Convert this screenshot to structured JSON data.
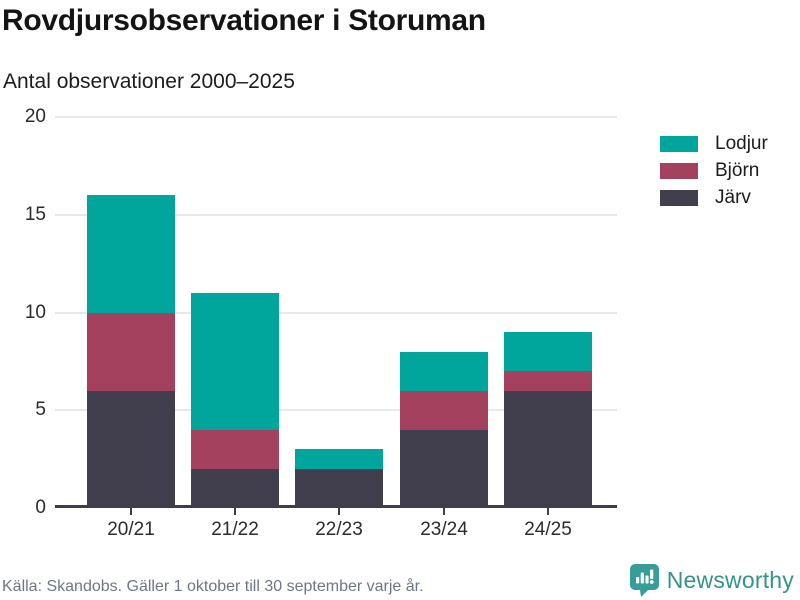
{
  "header": {
    "title": "Rovdjursobservationer i Storuman",
    "subtitle": "Antal observationer 2000–2025"
  },
  "chart_data": {
    "type": "bar",
    "stacked": true,
    "title": "Rovdjursobservationer i Storuman",
    "subtitle": "Antal observationer 2000–2025",
    "categories": [
      "20/21",
      "21/22",
      "22/23",
      "23/24",
      "24/25"
    ],
    "series": [
      {
        "name": "Lodjur",
        "color": "#00a69c",
        "values": [
          6,
          7,
          1,
          2,
          2
        ]
      },
      {
        "name": "Björn",
        "color": "#a4415f",
        "values": [
          4,
          2,
          0,
          2,
          1
        ]
      },
      {
        "name": "Järv",
        "color": "#413f4e",
        "values": [
          6,
          2,
          2,
          4,
          6
        ]
      }
    ],
    "stack_order_bottom_to_top": [
      "Järv",
      "Björn",
      "Lodjur"
    ],
    "totals": [
      16,
      11,
      3,
      8,
      9
    ],
    "xlabel": "",
    "ylabel": "",
    "ylim": [
      0,
      20
    ],
    "yticks": [
      0,
      5,
      10,
      15,
      20
    ],
    "grid": true,
    "legend_position": "right"
  },
  "footer": {
    "source": "Källa: Skandobs. Gäller 1 oktober till 30 september varje år.",
    "brand": "Newsworthy"
  },
  "icons": {
    "brand_icon": "newsworthy-speech-bubble-bar-chart-icon"
  },
  "colors": {
    "lodjur_teal": "#00a69c",
    "bjorn_maroon": "#a4415f",
    "jarv_dark": "#413f4e",
    "grid": "#e8e8e8",
    "axis": "#3f3d4d",
    "text": "#1c1c1c",
    "muted_text": "#6e7584",
    "brand_teal": "#33938c"
  }
}
